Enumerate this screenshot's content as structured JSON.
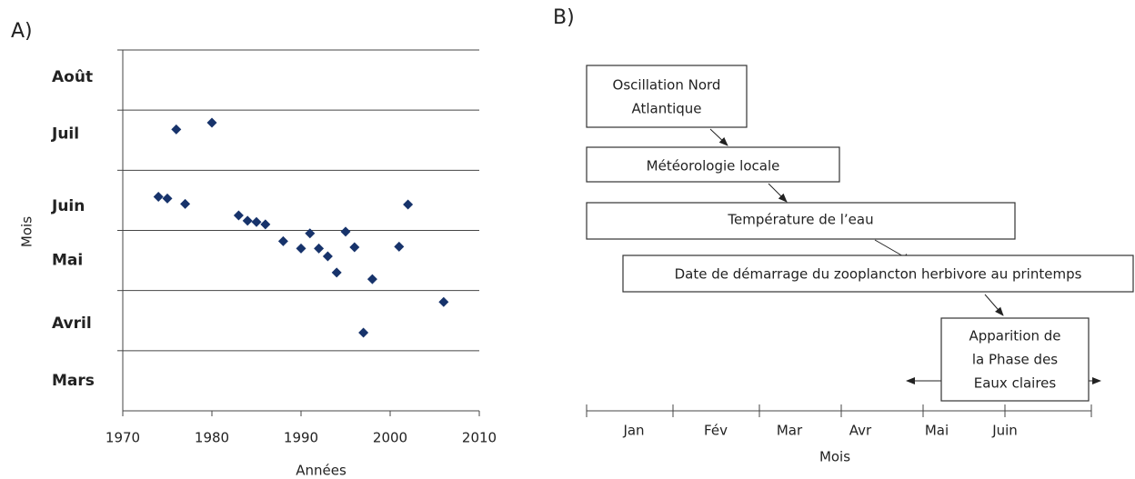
{
  "chart_data": {
    "type": "scatter",
    "label": "A)",
    "xlabel": "Années",
    "ylabel": "Mois",
    "x": [
      1974,
      1975,
      1976,
      1977,
      1980,
      1983,
      1984,
      1985,
      1986,
      1988,
      1990,
      1991,
      1992,
      1993,
      1994,
      1995,
      1996,
      1997,
      1998,
      2001,
      2002,
      2006
    ],
    "values": [
      6.56,
      6.53,
      7.68,
      6.44,
      7.79,
      6.25,
      6.16,
      6.14,
      6.1,
      5.82,
      5.7,
      5.95,
      5.7,
      5.57,
      5.3,
      5.98,
      5.72,
      4.3,
      5.19,
      5.73,
      6.43,
      4.81
    ],
    "color": "#17336b",
    "xlim": [
      1970,
      2010
    ],
    "xticks": [
      1970,
      1980,
      1990,
      2000,
      2010
    ],
    "ylim": [
      3,
      9
    ],
    "yticks": [
      {
        "value": 3.5,
        "label": "Mars"
      },
      {
        "value": 4.45,
        "label": "Avril"
      },
      {
        "value": 5.5,
        "label": "Mai"
      },
      {
        "value": 6.4,
        "label": "Juin"
      },
      {
        "value": 7.6,
        "label": "Juil"
      },
      {
        "value": 8.55,
        "label": "Août"
      }
    ],
    "ygrid": [
      4,
      5,
      6,
      7,
      8,
      9
    ]
  },
  "diagram": {
    "label": "B)",
    "boxes": [
      {
        "lines": [
          "Oscillation Nord",
          "Atlantique"
        ]
      },
      {
        "lines": [
          "Météorologie locale"
        ]
      },
      {
        "lines": [
          "Température de l’eau"
        ]
      },
      {
        "lines": [
          "Date de démarrage du zooplancton herbivore au  printemps"
        ]
      },
      {
        "lines": [
          "Apparition de",
          "la Phase des",
          "Eaux claires"
        ]
      }
    ],
    "timeline": {
      "months": [
        "Jan",
        "Fév",
        "Mar",
        "Avr",
        "Mai",
        "Juin"
      ],
      "label": "Mois"
    }
  }
}
